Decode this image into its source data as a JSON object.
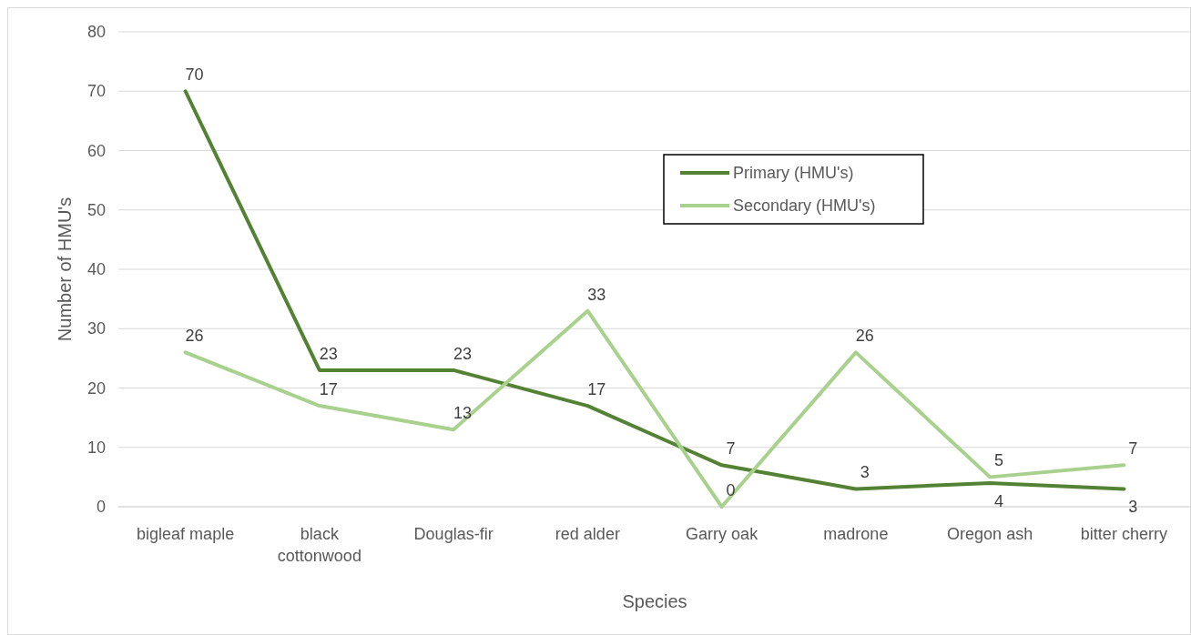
{
  "chart_data": {
    "type": "line",
    "xlabel": "Species",
    "ylabel": "Number of HMU's",
    "categories": [
      "bigleaf maple",
      "black cottonwood",
      "Douglas-fir",
      "red alder",
      "Garry oak",
      "madrone",
      "Oregon ash",
      "bitter cherry"
    ],
    "series": [
      {
        "name": "Primary (HMU's)",
        "color": "#548235",
        "values": [
          70,
          23,
          23,
          17,
          7,
          3,
          4,
          3
        ]
      },
      {
        "name": "Secondary (HMU's)",
        "color": "#a9d18e",
        "values": [
          26,
          17,
          13,
          33,
          0,
          26,
          5,
          7
        ]
      }
    ],
    "ylim": [
      0,
      80
    ],
    "yticks": [
      0,
      10,
      20,
      30,
      40,
      50,
      60,
      70,
      80
    ],
    "grid": "y",
    "legend": "top",
    "marker": "none",
    "line_style": "solid",
    "data_labels": true
  }
}
